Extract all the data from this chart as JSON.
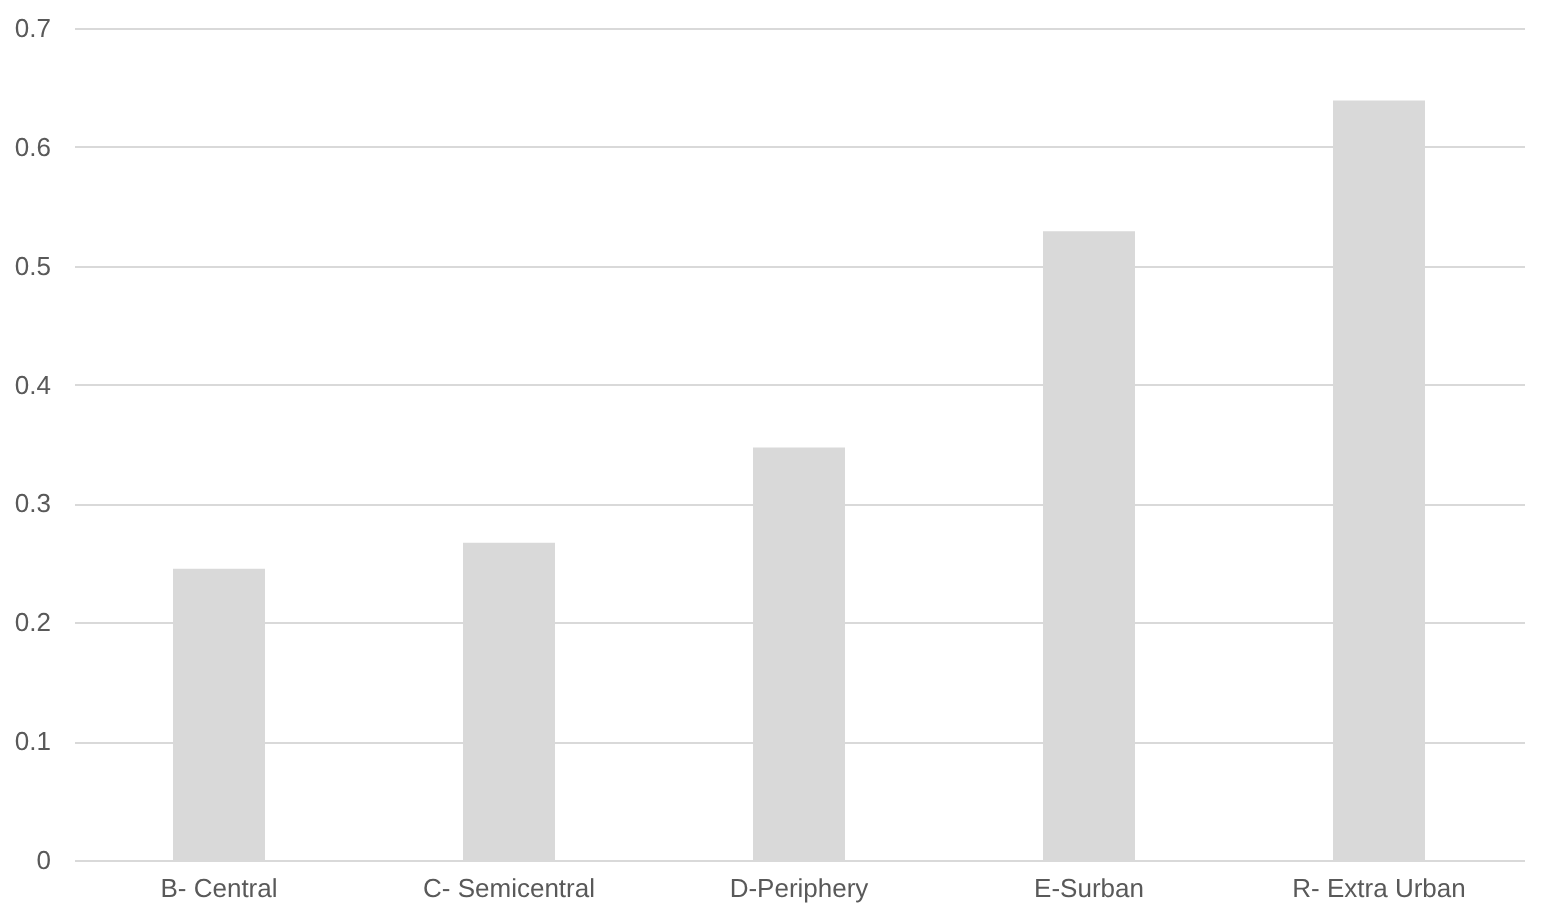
{
  "chart_data": {
    "type": "bar",
    "categories": [
      "B- Central",
      "C- Semicentral",
      "D-Periphery",
      "E-Surban",
      "R- Extra Urban"
    ],
    "values": [
      0.245,
      0.267,
      0.347,
      0.529,
      0.639
    ],
    "color": "#d9d9d9",
    "ylim": [
      0,
      0.7
    ],
    "yticks": [
      0,
      0.1,
      0.2,
      0.3,
      0.4,
      0.5,
      0.6,
      0.7
    ],
    "grid": "y"
  }
}
